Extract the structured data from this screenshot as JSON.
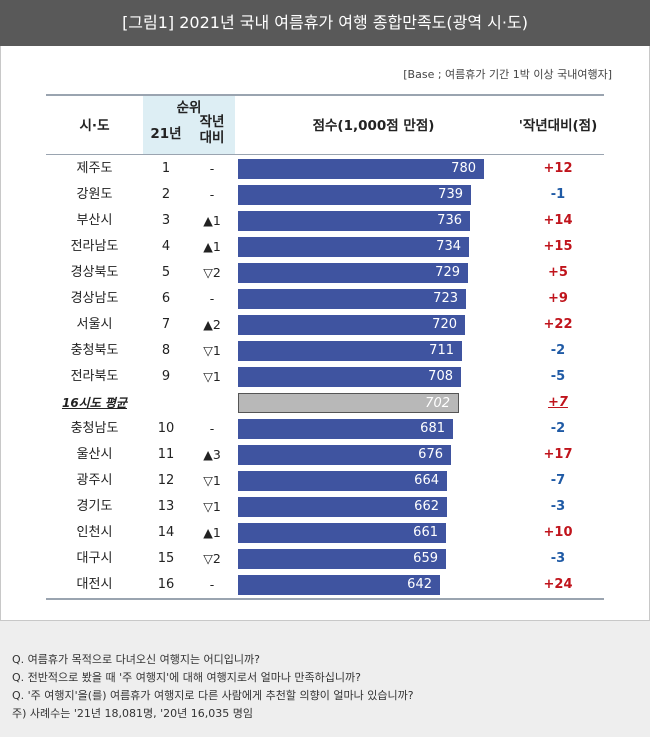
{
  "title": "[그림1] 2021년 국내 여름휴가 여행 종합만족도(광역 시·도)",
  "base_note": "[Base ; 여름휴가 기간 1박 이상 국내여행자]",
  "headers": {
    "region": "시·도",
    "rank_group": "순위",
    "rank_21": "21년",
    "rank_change_line1": "작년",
    "rank_change_line2": "대비",
    "score": "점수(1,000점 만점)",
    "diff": "'작년대비(점)"
  },
  "footnotes": [
    "Q. 여름휴가 목적으로 다녀오신 여행지는 어디입니까?",
    "Q. 전반적으로 봤을 때 '주 여행지'에 대해 여행지로서 얼마나 만족하십니까?",
    "Q. '주 여행지'을(를) 여름휴가 여행지로 다른 사람에게 추천할 의향이 얼마나 있습니까?",
    "주) 사례수는 '21년 18,081명, '20년 16,035 명임"
  ],
  "colors": {
    "bar": "#3f54a0",
    "avg_bar": "#b8b8b8",
    "positive": "#c0141c",
    "negative": "#1f5aa5"
  },
  "chart_data": {
    "type": "bar",
    "orientation": "horizontal",
    "xlim": [
      0,
      780
    ],
    "rows": [
      {
        "region": "제주도",
        "rank": "1",
        "change": "-",
        "score": 780,
        "diff": "+12"
      },
      {
        "region": "강원도",
        "rank": "2",
        "change": "-",
        "score": 739,
        "diff": "-1"
      },
      {
        "region": "부산시",
        "rank": "3",
        "change": "▲1",
        "score": 736,
        "diff": "+14"
      },
      {
        "region": "전라남도",
        "rank": "4",
        "change": "▲1",
        "score": 734,
        "diff": "+15"
      },
      {
        "region": "경상북도",
        "rank": "5",
        "change": "▽2",
        "score": 729,
        "diff": "+5"
      },
      {
        "region": "경상남도",
        "rank": "6",
        "change": "-",
        "score": 723,
        "diff": "+9"
      },
      {
        "region": "서울시",
        "rank": "7",
        "change": "▲2",
        "score": 720,
        "diff": "+22"
      },
      {
        "region": "충청북도",
        "rank": "8",
        "change": "▽1",
        "score": 711,
        "diff": "-2"
      },
      {
        "region": "전라북도",
        "rank": "9",
        "change": "▽1",
        "score": 708,
        "diff": "-5"
      },
      {
        "region": "16시도 평균",
        "rank": "",
        "change": "",
        "score": 702,
        "diff": "+7",
        "average": true
      },
      {
        "region": "충청남도",
        "rank": "10",
        "change": "-",
        "score": 681,
        "diff": "-2"
      },
      {
        "region": "울산시",
        "rank": "11",
        "change": "▲3",
        "score": 676,
        "diff": "+17"
      },
      {
        "region": "광주시",
        "rank": "12",
        "change": "▽1",
        "score": 664,
        "diff": "-7"
      },
      {
        "region": "경기도",
        "rank": "13",
        "change": "▽1",
        "score": 662,
        "diff": "-3"
      },
      {
        "region": "인천시",
        "rank": "14",
        "change": "▲1",
        "score": 661,
        "diff": "+10"
      },
      {
        "region": "대구시",
        "rank": "15",
        "change": "▽2",
        "score": 659,
        "diff": "-3"
      },
      {
        "region": "대전시",
        "rank": "16",
        "change": "-",
        "score": 642,
        "diff": "+24"
      }
    ]
  }
}
